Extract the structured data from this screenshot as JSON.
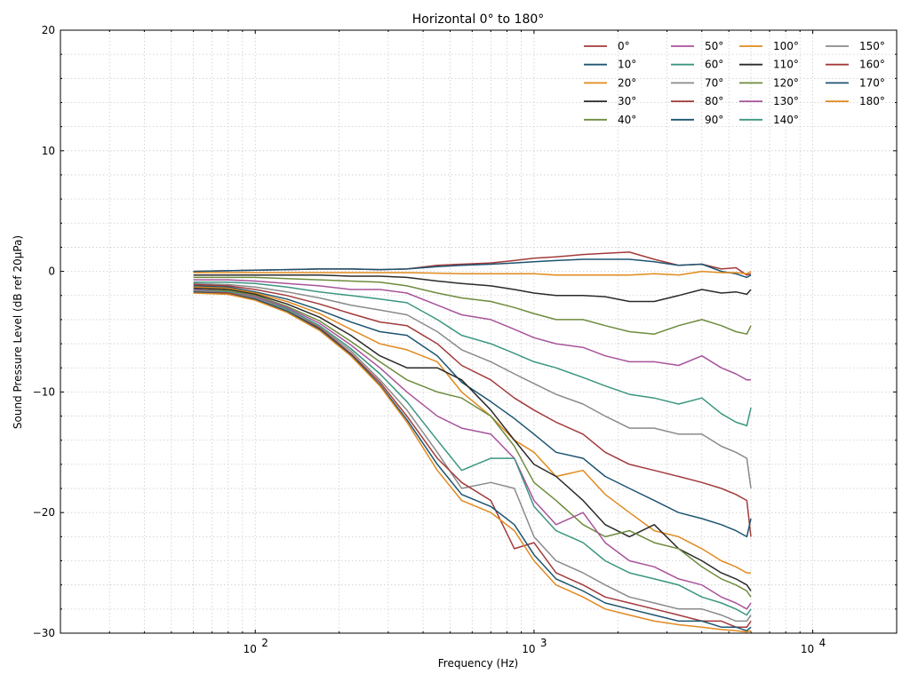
{
  "chart_data": {
    "type": "line",
    "title": "Horizontal 0° to 180°",
    "xlabel": "Frequency (Hz)",
    "ylabel": "Sound Pressure Level (dB ref 20µPa)",
    "xscale": "log",
    "xlim": [
      20,
      20000
    ],
    "ylim": [
      -30,
      20
    ],
    "y_ticks": [
      "−30",
      "−20",
      "−10",
      "0",
      "10",
      "20"
    ],
    "x_ticks": [
      {
        "base": "10",
        "exp": "2"
      },
      {
        "base": "10",
        "exp": "3"
      },
      {
        "base": "10",
        "exp": "4"
      }
    ],
    "grid": true,
    "legend_position": "top-right",
    "x": [
      60,
      80,
      100,
      130,
      170,
      220,
      280,
      350,
      450,
      550,
      700,
      850,
      1000,
      1200,
      1500,
      1800,
      2200,
      2700,
      3300,
      4000,
      4700,
      5300,
      5800,
      6000
    ],
    "series": [
      {
        "name": "0°",
        "color": "#a23a3a",
        "values": [
          0.0,
          0.05,
          0.1,
          0.15,
          0.2,
          0.2,
          0.15,
          0.2,
          0.5,
          0.6,
          0.7,
          0.9,
          1.1,
          1.2,
          1.4,
          1.5,
          1.6,
          1.0,
          0.5,
          0.6,
          0.2,
          0.3,
          -0.3,
          -0.2
        ]
      },
      {
        "name": "10°",
        "color": "#1d5470",
        "values": [
          0.0,
          0.05,
          0.1,
          0.15,
          0.2,
          0.2,
          0.15,
          0.2,
          0.4,
          0.5,
          0.6,
          0.7,
          0.8,
          0.9,
          1.0,
          1.0,
          1.0,
          0.8,
          0.5,
          0.6,
          0.0,
          -0.2,
          -0.5,
          -0.3
        ]
      },
      {
        "name": "20°",
        "color": "#e08a1e",
        "values": [
          -0.1,
          -0.1,
          -0.1,
          -0.1,
          -0.1,
          -0.1,
          -0.1,
          -0.1,
          -0.15,
          -0.2,
          -0.2,
          -0.2,
          -0.2,
          -0.3,
          -0.3,
          -0.3,
          -0.3,
          -0.2,
          -0.3,
          0.0,
          -0.1,
          -0.1,
          -0.2,
          0.0
        ]
      },
      {
        "name": "30°",
        "color": "#2a2a2a",
        "values": [
          -0.3,
          -0.3,
          -0.3,
          -0.3,
          -0.3,
          -0.4,
          -0.4,
          -0.5,
          -0.8,
          -1.0,
          -1.2,
          -1.5,
          -1.8,
          -2.0,
          -2.0,
          -2.1,
          -2.5,
          -2.5,
          -2.0,
          -1.5,
          -1.8,
          -1.7,
          -1.9,
          -1.5
        ]
      },
      {
        "name": "40°",
        "color": "#6e8b3d",
        "values": [
          -0.5,
          -0.5,
          -0.5,
          -0.6,
          -0.7,
          -0.8,
          -0.9,
          -1.2,
          -1.8,
          -2.2,
          -2.5,
          -3.0,
          -3.5,
          -4.0,
          -4.0,
          -4.5,
          -5.0,
          -5.2,
          -4.5,
          -4.0,
          -4.5,
          -5.0,
          -5.2,
          -4.5
        ]
      },
      {
        "name": "50°",
        "color": "#a8539b",
        "values": [
          -0.7,
          -0.7,
          -0.8,
          -1.0,
          -1.2,
          -1.5,
          -1.5,
          -1.8,
          -2.8,
          -3.6,
          -4.0,
          -4.8,
          -5.5,
          -6.0,
          -6.3,
          -7.0,
          -7.5,
          -7.5,
          -7.8,
          -7.0,
          -8.0,
          -8.5,
          -9.0,
          -9.0
        ]
      },
      {
        "name": "60°",
        "color": "#3a9680",
        "values": [
          -0.9,
          -0.9,
          -1.0,
          -1.3,
          -1.7,
          -2.0,
          -2.3,
          -2.6,
          -4.0,
          -5.3,
          -6.0,
          -6.8,
          -7.5,
          -8.0,
          -8.8,
          -9.5,
          -10.2,
          -10.5,
          -11.0,
          -10.5,
          -11.8,
          -12.5,
          -12.8,
          -11.3
        ]
      },
      {
        "name": "70°",
        "color": "#8a8a8a",
        "values": [
          -1.0,
          -1.1,
          -1.3,
          -1.7,
          -2.2,
          -2.8,
          -3.2,
          -3.6,
          -5.0,
          -6.5,
          -7.5,
          -8.5,
          -9.3,
          -10.2,
          -11.0,
          -12.0,
          -13.0,
          -13.0,
          -13.5,
          -13.5,
          -14.5,
          -15.0,
          -15.5,
          -18.0
        ]
      },
      {
        "name": "80°",
        "color": "#a23a3a",
        "values": [
          -1.1,
          -1.2,
          -1.5,
          -2.0,
          -2.7,
          -3.5,
          -4.2,
          -4.5,
          -6.0,
          -7.8,
          -9.0,
          -10.5,
          -11.5,
          -12.5,
          -13.5,
          -15.0,
          -16.0,
          -16.5,
          -17.0,
          -17.5,
          -18.0,
          -18.5,
          -19.0,
          -22.0
        ]
      },
      {
        "name": "90°",
        "color": "#1d5470",
        "values": [
          -1.2,
          -1.3,
          -1.7,
          -2.3,
          -3.2,
          -4.2,
          -5.0,
          -5.3,
          -7.0,
          -9.2,
          -10.8,
          -12.2,
          -13.5,
          -15.0,
          -15.5,
          -17.0,
          -18.0,
          -19.0,
          -20.0,
          -20.5,
          -21.0,
          -21.5,
          -22.0,
          -20.5
        ]
      },
      {
        "name": "100°",
        "color": "#e08a1e",
        "values": [
          -1.3,
          -1.4,
          -1.8,
          -2.5,
          -3.5,
          -4.8,
          -6.0,
          -6.5,
          -7.5,
          -10.0,
          -12.0,
          -14.0,
          -15.0,
          -17.0,
          -16.5,
          -18.5,
          -20.0,
          -21.5,
          -22.0,
          -23.0,
          -24.0,
          -24.5,
          -25.0,
          -25.0
        ]
      },
      {
        "name": "110°",
        "color": "#2a2a2a",
        "values": [
          -1.4,
          -1.5,
          -1.9,
          -2.7,
          -3.8,
          -5.3,
          -7.0,
          -8.0,
          -8.0,
          -9.0,
          -11.5,
          -14.0,
          -16.0,
          -17.0,
          -19.0,
          -21.0,
          -22.0,
          -21.0,
          -23.0,
          -24.0,
          -25.0,
          -25.5,
          -26.0,
          -26.5
        ]
      },
      {
        "name": "120°",
        "color": "#6e8b3d",
        "values": [
          -1.5,
          -1.6,
          -2.0,
          -2.9,
          -4.1,
          -5.8,
          -7.5,
          -9.0,
          -10.0,
          -10.5,
          -12.0,
          -14.5,
          -17.5,
          -19.0,
          -21.0,
          -22.0,
          -21.5,
          -22.5,
          -23.0,
          -24.5,
          -25.5,
          -26.0,
          -26.5,
          -27.0
        ]
      },
      {
        "name": "130°",
        "color": "#a8539b",
        "values": [
          -1.5,
          -1.7,
          -2.1,
          -3.0,
          -4.3,
          -6.1,
          -8.0,
          -10.0,
          -12.0,
          -13.0,
          -13.5,
          -15.5,
          -19.0,
          -21.0,
          -20.0,
          -22.5,
          -24.0,
          -24.5,
          -25.5,
          -26.0,
          -27.0,
          -27.5,
          -28.0,
          -27.5
        ]
      },
      {
        "name": "140°",
        "color": "#3a9680",
        "values": [
          -1.6,
          -1.7,
          -2.2,
          -3.1,
          -4.5,
          -6.4,
          -8.5,
          -10.8,
          -14.0,
          -16.5,
          -15.5,
          -15.5,
          -19.5,
          -21.5,
          -22.5,
          -24.0,
          -25.0,
          -25.5,
          -26.0,
          -27.0,
          -27.5,
          -28.0,
          -28.5,
          -28.0
        ]
      },
      {
        "name": "150°",
        "color": "#8a8a8a",
        "values": [
          -1.6,
          -1.8,
          -2.2,
          -3.2,
          -4.6,
          -6.6,
          -9.0,
          -11.5,
          -15.0,
          -18.0,
          -17.5,
          -18.0,
          -22.0,
          -24.0,
          -25.0,
          -26.0,
          -27.0,
          -27.5,
          -28.0,
          -28.0,
          -28.5,
          -29.0,
          -29.0,
          -28.5
        ]
      },
      {
        "name": "160°",
        "color": "#a23a3a",
        "values": [
          -1.7,
          -1.8,
          -2.3,
          -3.3,
          -4.7,
          -6.8,
          -9.2,
          -12.0,
          -15.5,
          -17.5,
          -19.0,
          -23.0,
          -22.5,
          -25.0,
          -26.0,
          -27.0,
          -27.5,
          -28.0,
          -28.5,
          -29.0,
          -29.0,
          -29.5,
          -29.5,
          -29.0
        ]
      },
      {
        "name": "170°",
        "color": "#1d5470",
        "values": [
          -1.7,
          -1.9,
          -2.3,
          -3.3,
          -4.8,
          -6.9,
          -9.4,
          -12.3,
          -16.0,
          -18.5,
          -19.5,
          -21.0,
          -23.5,
          -25.5,
          -26.5,
          -27.5,
          -28.0,
          -28.5,
          -29.0,
          -29.0,
          -29.5,
          -29.5,
          -29.8,
          -29.5
        ]
      },
      {
        "name": "180°",
        "color": "#e08a1e",
        "values": [
          -1.8,
          -1.9,
          -2.4,
          -3.4,
          -4.9,
          -7.0,
          -9.5,
          -12.5,
          -16.5,
          -19.0,
          -20.0,
          -21.5,
          -24.0,
          -26.0,
          -27.0,
          -28.0,
          -28.5,
          -29.0,
          -29.3,
          -29.5,
          -29.7,
          -29.8,
          -29.9,
          -29.8
        ]
      }
    ]
  }
}
